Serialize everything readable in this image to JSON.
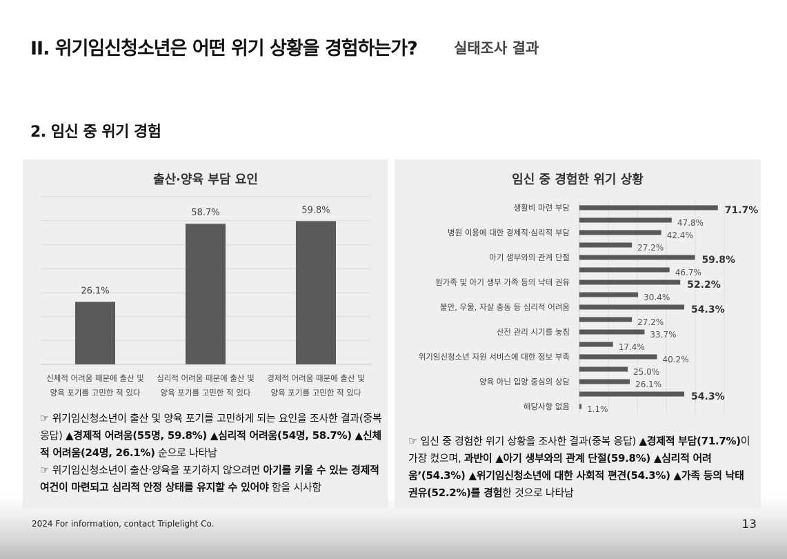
{
  "header": {
    "title": "II. 위기임신청소년은 어떤 위기 상황을 경험하는가?",
    "subtitle": "실태조사 결과"
  },
  "section_title": "2. 임신 중 위기 경험",
  "left_panel": {
    "title": "출산·양육 부담 요인",
    "summary_html": "☞ 위기임신청소년이 출산 및 양육 포기를 고민하게 되는 요인을 조사한 결과(중복 응답) <b>▲경제적 어려움(55명, 59.8%) ▲심리적 어려움(54명, 58.7%) ▲신체적 어려움(24명, 26.1%)</b> 순으로 나타남<br>☞ 위기임신청소년이 출산·양육을 포기하지 않으려면 <b>아기를 키울 수 있는 경제적 여건이 마련되고 심리적 안정 상태를 유지할 수 있어야</b> 함을 시사함"
  },
  "right_panel": {
    "title": "임신 중 경험한 위기 상황",
    "summary_html": "☞ 임신 중 경험한 위기 상황을 조사한 결과(중복 응답) <b>▲경제적 부담(71.7%)</b>이 가장 컸으며, <b>과반이 ▲아기 생부와의 관계 단절(59.8%) ▲심리적 어려움’(54.3%) ▲위기임신청소년에 대한 사회적 편견(54.3%) ▲가족 등의 낙태 권유(52.2%)를 경험</b>한 것으로 나타남"
  },
  "chart_data": [
    {
      "type": "bar",
      "title": "출산·양육 부담 요인",
      "categories": [
        [
          "신체적 어려움 때문에 출산 및",
          "양육 포기를 고민한 적 있다"
        ],
        [
          "심리적 어려움 때문에 출산 및",
          "양육 포기를 고민한 적 있다"
        ],
        [
          "경제적 어려움 때문에 출산 및",
          "양육 포기를 고민한 적 있다"
        ]
      ],
      "values": [
        26.1,
        58.7,
        59.8
      ],
      "value_labels": [
        "26.1%",
        "58.7%",
        "59.8%"
      ],
      "ylim": [
        0,
        70
      ],
      "grid": true,
      "bar_color": "#595959"
    },
    {
      "type": "bar",
      "orientation": "horizontal",
      "title": "임신 중 경험한 위기 상황",
      "categories": [
        "생활비 마련 부담",
        "",
        "병원 이용에 대한 경제적·심리적 부담",
        "",
        "아기 생부와의 관계 단절",
        "",
        "원가족 및 아기 생부 가족 등의 낙태 권유",
        "",
        "불안, 우울, 자살 충동 등 심리적 어려움",
        "",
        "산전 관리 시기를 놓침",
        "",
        "위기임신청소년 지원 서비스에 대한 정보 부족",
        "",
        "양육 아닌 입양 중심의 상담",
        "",
        "해당사항 없음"
      ],
      "values": [
        71.7,
        47.8,
        42.4,
        27.2,
        59.8,
        46.7,
        52.2,
        30.4,
        54.3,
        27.2,
        33.7,
        17.4,
        40.2,
        25.0,
        26.1,
        54.3,
        1.1
      ],
      "value_labels": [
        "71.7%",
        "47.8%",
        "42.4%",
        "27.2%",
        "59.8%",
        "46.7%",
        "52.2%",
        "30.4%",
        "54.3%",
        "27.2%",
        "33.7%",
        "17.4%",
        "40.2%",
        "25.0%",
        "26.1%",
        "54.3%",
        "1.1%"
      ],
      "highlighted": [
        true,
        false,
        false,
        false,
        true,
        false,
        true,
        false,
        true,
        false,
        false,
        false,
        false,
        false,
        false,
        true,
        false
      ],
      "xlim": [
        0,
        75
      ],
      "grid": true,
      "bar_color": "#595959"
    }
  ],
  "footer": {
    "contact": "2024 For information, contact Triplelight Co.",
    "page_number": "13"
  }
}
